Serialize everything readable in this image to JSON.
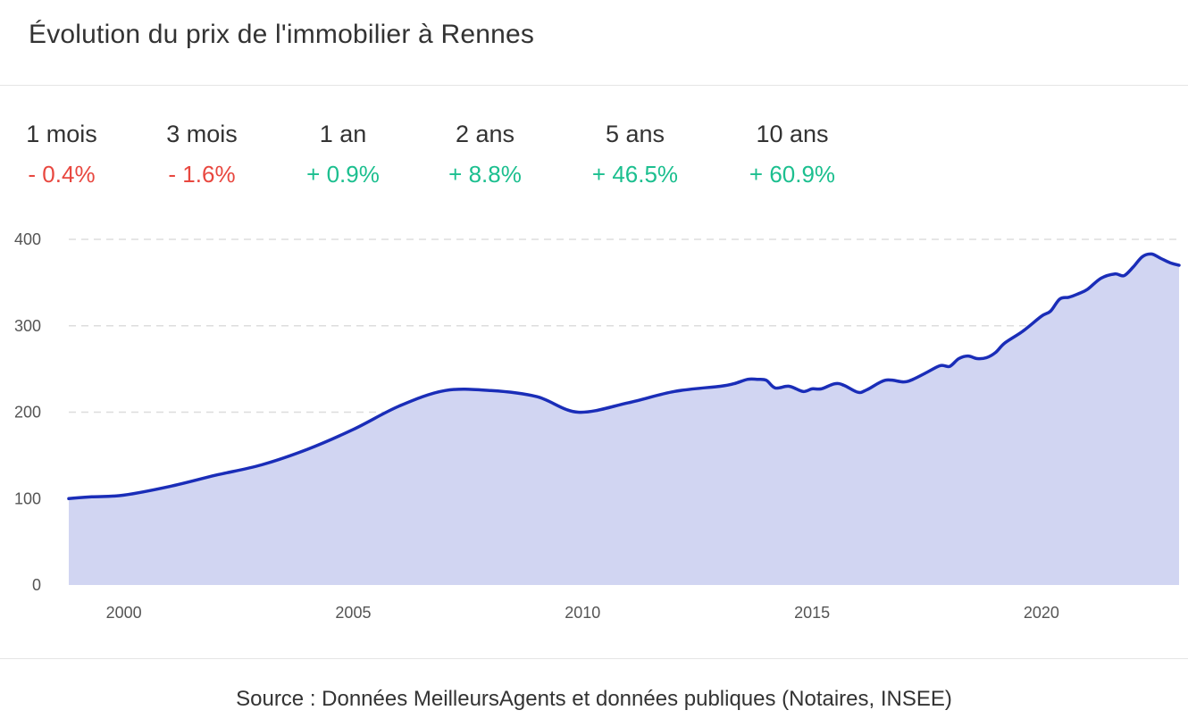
{
  "title": "Évolution du prix de l'immobilier à Rennes",
  "stats": [
    {
      "label": "1 mois",
      "value": "- 0.4%",
      "color": "#e8473f"
    },
    {
      "label": "3 mois",
      "value": "- 1.6%",
      "color": "#e8473f"
    },
    {
      "label": "1 an",
      "value": "+ 0.9%",
      "color": "#1cbf8f"
    },
    {
      "label": "2 ans",
      "value": "+ 8.8%",
      "color": "#1cbf8f"
    },
    {
      "label": "5 ans",
      "value": "+ 46.5%",
      "color": "#1cbf8f"
    },
    {
      "label": "10 ans",
      "value": "+ 60.9%",
      "color": "#1cbf8f"
    }
  ],
  "source": "Source : Données MeilleursAgents et données publiques (Notaires, INSEE)",
  "chart_data": {
    "type": "area",
    "line_color": "#1a2db8",
    "fill_color": "#d1d5f2",
    "grid": true,
    "ylim": [
      0,
      400
    ],
    "yticks": [
      0,
      100,
      200,
      300,
      400
    ],
    "xlim": [
      1998.8,
      2023.0
    ],
    "xticks": [
      2000,
      2005,
      2010,
      2015,
      2020
    ],
    "x": [
      1998.8,
      1999.3,
      2000.0,
      2001.0,
      2002.0,
      2003.0,
      2004.0,
      2005.0,
      2006.0,
      2007.0,
      2008.0,
      2009.0,
      2009.9,
      2011.0,
      2012.0,
      2013.0,
      2013.3,
      2013.6,
      2013.8,
      2014.0,
      2014.2,
      2014.5,
      2014.8,
      2015.0,
      2015.2,
      2015.5,
      2015.7,
      2016.0,
      2016.2,
      2016.6,
      2017.0,
      2017.2,
      2017.5,
      2017.8,
      2018.0,
      2018.2,
      2018.4,
      2018.6,
      2018.8,
      2019.0,
      2019.2,
      2019.6,
      2020.0,
      2020.2,
      2020.4,
      2020.6,
      2020.8,
      2021.0,
      2021.3,
      2021.6,
      2021.8,
      2022.0,
      2022.2,
      2022.4,
      2022.6,
      2022.8,
      2023.0
    ],
    "y": [
      100,
      102,
      104,
      114,
      127,
      139,
      157,
      180,
      207,
      225,
      225,
      218,
      200,
      211,
      224,
      230,
      233,
      238,
      238,
      237,
      228,
      230,
      224,
      227,
      227,
      233,
      231,
      223,
      226,
      237,
      235,
      238,
      246,
      254,
      253,
      262,
      265,
      262,
      263,
      269,
      280,
      294,
      311,
      317,
      331,
      333,
      337,
      342,
      355,
      360,
      358,
      368,
      380,
      383,
      378,
      373,
      370
    ]
  }
}
